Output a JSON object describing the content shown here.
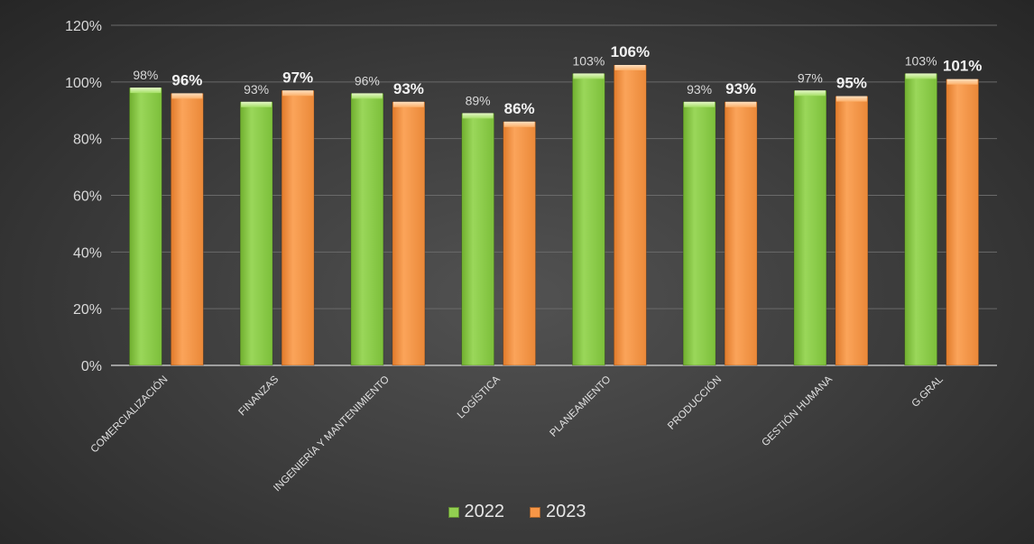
{
  "chart_data": {
    "type": "bar",
    "categories": [
      "COMERCIALIZACIÓN",
      "FINANZAS",
      "INGENIERÍA Y MANTENIMIENTO",
      "LOGÍSTICA",
      "PLANEAMIENTO",
      "PRODUCCIÓN",
      "GESTIÓN HUMANA",
      "G.GRAL"
    ],
    "series": [
      {
        "name": "2022",
        "values": [
          98,
          93,
          96,
          89,
          103,
          93,
          97,
          103
        ],
        "labels": [
          "98%",
          "93%",
          "96%",
          "89%",
          "103%",
          "93%",
          "97%",
          "103%"
        ],
        "color": "#92d050"
      },
      {
        "name": "2023",
        "values": [
          96,
          97,
          93,
          86,
          106,
          93,
          95,
          101
        ],
        "labels": [
          "96%",
          "97%",
          "93%",
          "86%",
          "106%",
          "93%",
          "95%",
          "101%"
        ],
        "color": "#f79646"
      }
    ],
    "y_ticks": [
      "0%",
      "20%",
      "40%",
      "60%",
      "80%",
      "100%",
      "120%"
    ],
    "y_tick_values": [
      0,
      20,
      40,
      60,
      80,
      100,
      120
    ],
    "ylim": [
      0,
      120
    ],
    "grid": true,
    "legend_position": "bottom"
  }
}
